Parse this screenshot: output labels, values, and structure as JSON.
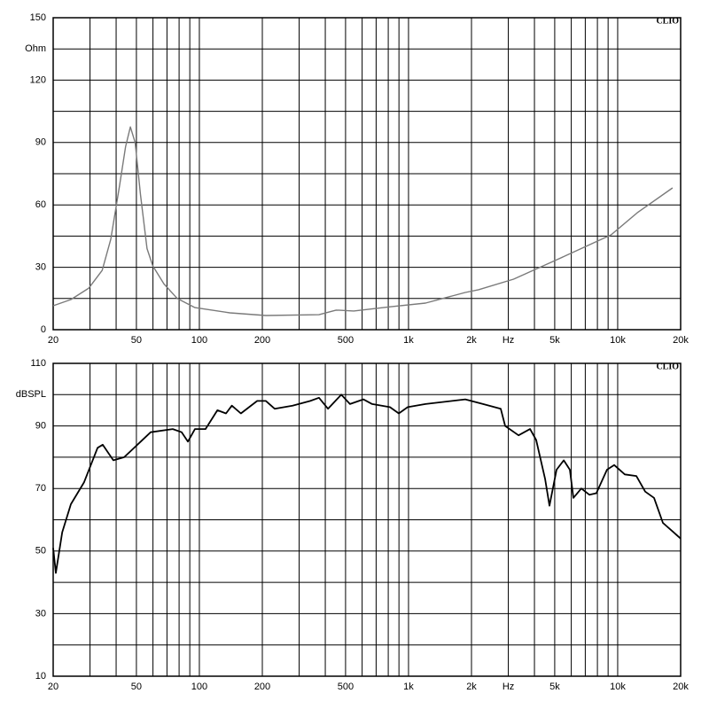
{
  "chart_data": [
    {
      "type": "line",
      "brand": "CLIO",
      "ylabel": "Ohm",
      "xscale": "log",
      "xlim": [
        20,
        20000
      ],
      "ylim": [
        0,
        150
      ],
      "xticks": [
        20,
        50,
        100,
        200,
        500,
        {
          "value": 1000,
          "label": "1k"
        },
        {
          "value": 2000,
          "label": "2k"
        },
        {
          "value": 3000,
          "label": "Hz"
        },
        {
          "value": 5000,
          "label": "5k"
        },
        {
          "value": 10000,
          "label": "10k"
        },
        {
          "value": 20000,
          "label": "20k"
        }
      ],
      "xgrid": [
        30,
        40,
        60,
        70,
        80,
        90,
        300,
        400,
        600,
        700,
        800,
        900,
        4000,
        6000,
        7000,
        8000,
        9000
      ],
      "yticks": [
        0,
        30,
        60,
        90,
        120,
        150
      ],
      "ygrid": [
        15,
        45,
        75,
        105,
        135
      ],
      "x": [
        20,
        24.3,
        29.6,
        34.3,
        37.7,
        41.5,
        44.4,
        46.8,
        49.3,
        52.3,
        56.2,
        59.9,
        67.7,
        78.4,
        95.3,
        140,
        208,
        373,
        451,
        547,
        815,
        1205,
        1868,
        2160,
        3180,
        5140,
        9300,
        12400,
        18300
      ],
      "series": [
        {
          "color": "#7a7a7a",
          "values": [
            11.5,
            14.5,
            20,
            28.5,
            43.5,
            69,
            88,
            97.5,
            90,
            65,
            39,
            30.7,
            22,
            15,
            10.6,
            8.1,
            6.8,
            7.2,
            9.4,
            9,
            11,
            12.8,
            17.9,
            19.2,
            24.3,
            33.7,
            45.6,
            56.2,
            68.2
          ]
        }
      ]
    },
    {
      "type": "line",
      "brand": "CLIO",
      "ylabel": "dBSPL",
      "xscale": "log",
      "xlim": [
        20,
        20000
      ],
      "ylim": [
        10,
        110
      ],
      "xticks": [
        20,
        50,
        100,
        200,
        500,
        {
          "value": 1000,
          "label": "1k"
        },
        {
          "value": 2000,
          "label": "2k"
        },
        {
          "value": 3000,
          "label": "Hz"
        },
        {
          "value": 5000,
          "label": "5k"
        },
        {
          "value": 10000,
          "label": "10k"
        },
        {
          "value": 20000,
          "label": "20k"
        }
      ],
      "xgrid": [
        30,
        40,
        60,
        70,
        80,
        90,
        300,
        400,
        600,
        700,
        800,
        900,
        4000,
        6000,
        7000,
        8000,
        9000
      ],
      "yticks": [
        10,
        30,
        50,
        70,
        90,
        110
      ],
      "ygrid": [
        20,
        40,
        60,
        80,
        100
      ],
      "x": [
        20,
        20.6,
        22.1,
        24.3,
        28.1,
        32.6,
        34.5,
        38.8,
        43.7,
        58.5,
        74.6,
        82.3,
        88.1,
        95.3,
        107,
        122,
        134,
        143,
        158,
        189,
        208,
        229,
        279,
        339,
        373,
        412,
        477,
        525,
        608,
        670,
        815,
        899,
        991,
        1205,
        1614,
        1868,
        2271,
        2760,
        2899,
        3357,
        3811,
        4076,
        4498,
        4721,
        5105,
        5520,
        5905,
        6140,
        6700,
        7326,
        7910,
        8894,
        9617,
        10812,
        12275,
        13540,
        14930,
        16450,
        18500,
        20000
      ],
      "series": [
        {
          "color": "#000000",
          "values": [
            51,
            43,
            56,
            65,
            72,
            83,
            84,
            79,
            80,
            88,
            89,
            88,
            85,
            89,
            89,
            95,
            94,
            96.5,
            94,
            98,
            98,
            95.5,
            96.5,
            98,
            99,
            95.5,
            100,
            97,
            98.5,
            97,
            96,
            94,
            96,
            97,
            98,
            98.5,
            97,
            95.5,
            90,
            87,
            89,
            85.5,
            73,
            64.5,
            76,
            79,
            76,
            67,
            70,
            68,
            68.5,
            76,
            77.5,
            74.5,
            74,
            69,
            67,
            59,
            56,
            54
          ]
        }
      ]
    }
  ]
}
